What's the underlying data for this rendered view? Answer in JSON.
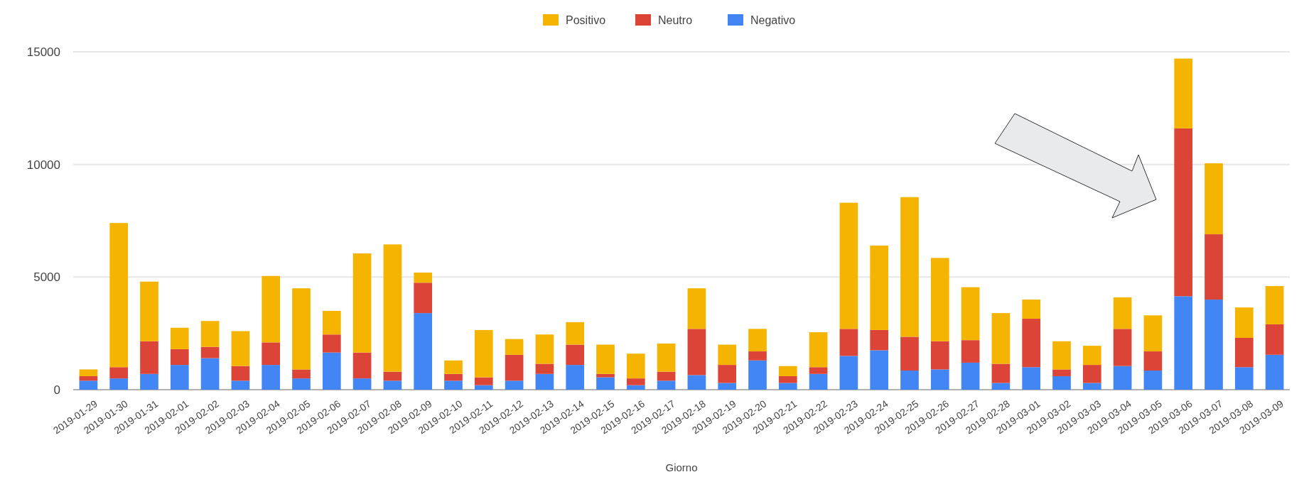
{
  "chart_data": {
    "type": "bar",
    "stacked": true,
    "xlabel": "Giorno",
    "legend": "top",
    "grid": "y",
    "ylim": [
      0,
      15000
    ],
    "yticks": [
      0,
      5000,
      10000,
      15000
    ],
    "categories": [
      "2019-01-29",
      "2019-01-30",
      "2019-01-31",
      "2019-02-01",
      "2019-02-02",
      "2019-02-03",
      "2019-02-04",
      "2019-02-05",
      "2019-02-06",
      "2019-02-07",
      "2019-02-08",
      "2019-02-09",
      "2019-02-10",
      "2019-02-11",
      "2019-02-12",
      "2019-02-13",
      "2019-02-14",
      "2019-02-15",
      "2019-02-16",
      "2019-02-17",
      "2019-02-18",
      "2019-02-19",
      "2019-02-20",
      "2019-02-21",
      "2019-02-22",
      "2019-02-23",
      "2019-02-24",
      "2019-02-25",
      "2019-02-26",
      "2019-02-27",
      "2019-02-28",
      "2019-03-01",
      "2019-03-02",
      "2019-03-03",
      "2019-03-04",
      "2019-03-05",
      "2019-03-06",
      "2019-03-07",
      "2019-03-08",
      "2019-03-09"
    ],
    "series": [
      {
        "name": "Negativo",
        "color": "#4285f4",
        "values": [
          400,
          500,
          700,
          1100,
          1400,
          400,
          1100,
          500,
          1650,
          500,
          400,
          3400,
          400,
          200,
          400,
          700,
          1100,
          550,
          200,
          400,
          650,
          300,
          1300,
          300,
          700,
          1500,
          1750,
          850,
          900,
          1200,
          300,
          1000,
          600,
          300,
          1050,
          850,
          4150,
          4000,
          1000,
          1550
        ]
      },
      {
        "name": "Neutro",
        "color": "#db4437",
        "values": [
          200,
          500,
          1450,
          700,
          500,
          650,
          1000,
          400,
          800,
          1150,
          400,
          1350,
          300,
          350,
          1150,
          450,
          900,
          150,
          300,
          400,
          2050,
          800,
          400,
          300,
          300,
          1200,
          900,
          1500,
          1250,
          1000,
          850,
          2150,
          300,
          800,
          1650,
          850,
          7450,
          2900,
          1300,
          1350
        ]
      },
      {
        "name": "Positivo",
        "color": "#f4b400",
        "values": [
          300,
          6400,
          2650,
          950,
          1150,
          1550,
          2950,
          3600,
          1050,
          4400,
          5650,
          450,
          600,
          2100,
          700,
          1300,
          1000,
          1300,
          1100,
          1250,
          1800,
          900,
          1000,
          450,
          1550,
          5600,
          3750,
          6200,
          3700,
          2350,
          2250,
          850,
          1250,
          850,
          1400,
          1600,
          3100,
          3150,
          1350,
          1700
        ]
      }
    ]
  }
}
